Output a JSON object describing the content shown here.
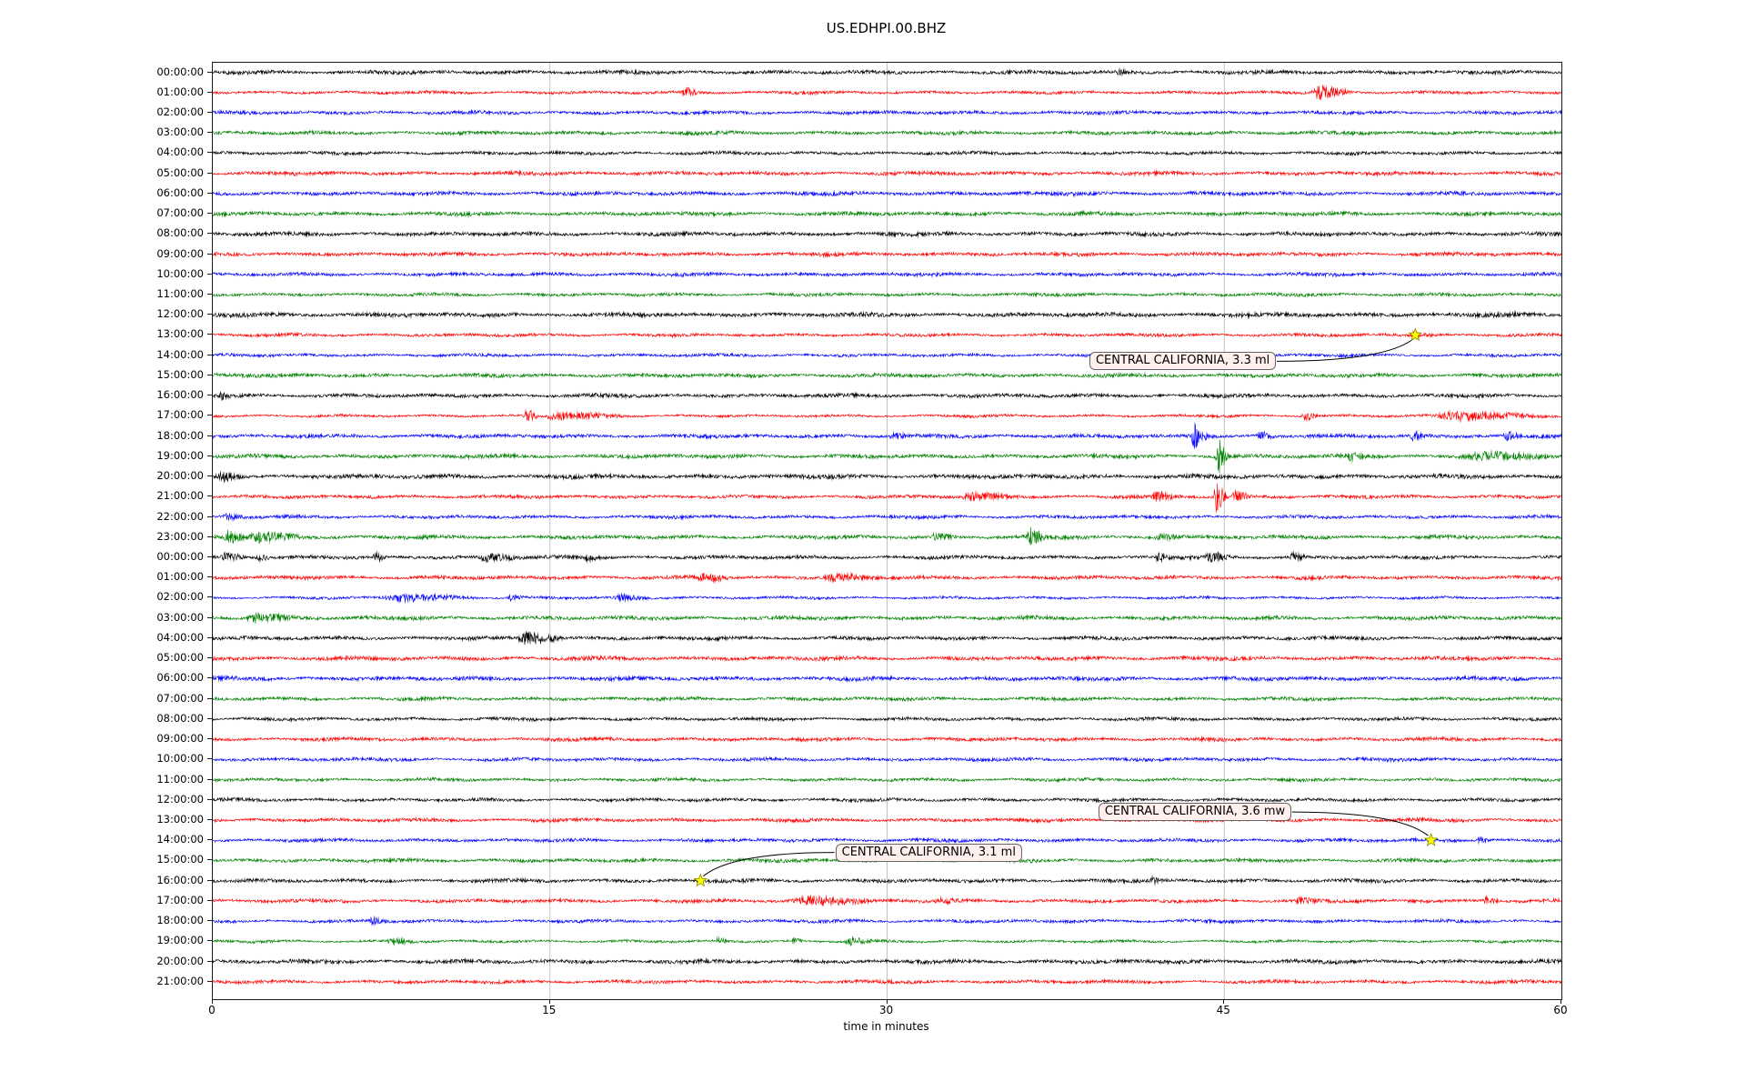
{
  "title": "US.EDHPI.00.BHZ",
  "chart_data": {
    "type": "line",
    "subtype": "seismogram-dayplot",
    "title": "US.EDHPI.00.BHZ",
    "xlabel": "time in minutes",
    "xlim": [
      0,
      60
    ],
    "x_ticks": [
      0,
      15,
      30,
      45,
      60
    ],
    "grid": true,
    "grid_color": "#bbbbbb",
    "trace_colors": [
      "#000000",
      "#ff0000",
      "#0000ff",
      "#008000"
    ],
    "marker_color": "#ffff00",
    "annotation_fill": "#fff0ee",
    "row_labels": [
      "00:00:00",
      "01:00:00",
      "02:00:00",
      "03:00:00",
      "04:00:00",
      "05:00:00",
      "06:00:00",
      "07:00:00",
      "08:00:00",
      "09:00:00",
      "10:00:00",
      "11:00:00",
      "12:00:00",
      "13:00:00",
      "14:00:00",
      "15:00:00",
      "16:00:00",
      "17:00:00",
      "18:00:00",
      "19:00:00",
      "20:00:00",
      "21:00:00",
      "22:00:00",
      "23:00:00",
      "00:00:00",
      "01:00:00",
      "02:00:00",
      "03:00:00",
      "04:00:00",
      "05:00:00",
      "06:00:00",
      "07:00:00",
      "08:00:00",
      "09:00:00",
      "10:00:00",
      "11:00:00",
      "12:00:00",
      "13:00:00",
      "14:00:00",
      "15:00:00",
      "16:00:00",
      "17:00:00",
      "18:00:00",
      "19:00:00",
      "20:00:00",
      "21:00:00"
    ],
    "events": [
      {
        "label": "CENTRAL CALIFORNIA, 3.3 ml",
        "row": 13,
        "minute": 53.5,
        "box_row": 14.3,
        "box_min": 39.0,
        "arrow_side": "right",
        "marker": "yellow-star"
      },
      {
        "label": "CENTRAL CALIFORNIA, 3.6 mw",
        "row": 38,
        "minute": 54.2,
        "box_row": 36.6,
        "box_min": 39.4,
        "arrow_side": "right",
        "marker": "yellow-star"
      },
      {
        "label": "CENTRAL CALIFORNIA, 3.1 ml",
        "row": 40,
        "minute": 21.7,
        "box_row": 38.6,
        "box_min": 27.7,
        "arrow_side": "left",
        "marker": "yellow-star"
      }
    ],
    "bursts": [
      {
        "row": 0,
        "s": 40.2,
        "e": 40.7,
        "a": 3
      },
      {
        "row": 1,
        "s": 20.8,
        "e": 21.7,
        "a": 5
      },
      {
        "row": 1,
        "s": 48.8,
        "e": 50.8,
        "a": 7
      },
      {
        "row": 13,
        "s": 53.2,
        "e": 54.4,
        "a": 3.5
      },
      {
        "row": 16,
        "s": 0.2,
        "e": 0.8,
        "a": 3
      },
      {
        "row": 17,
        "s": 13.8,
        "e": 14.5,
        "a": 8
      },
      {
        "row": 17,
        "s": 14.5,
        "e": 18.6,
        "a": 3.5
      },
      {
        "row": 17,
        "s": 48.4,
        "e": 49.3,
        "a": 4.5
      },
      {
        "row": 17,
        "s": 54.2,
        "e": 60.0,
        "a": 4.5
      },
      {
        "row": 18,
        "s": 30.1,
        "e": 30.9,
        "a": 3.5
      },
      {
        "row": 18,
        "s": 43.5,
        "e": 44.3,
        "a": 14
      },
      {
        "row": 18,
        "s": 46.4,
        "e": 47.4,
        "a": 4.5
      },
      {
        "row": 18,
        "s": 53.2,
        "e": 54.1,
        "a": 5
      },
      {
        "row": 18,
        "s": 57.4,
        "e": 58.3,
        "a": 4.5
      },
      {
        "row": 19,
        "s": 44.6,
        "e": 45.2,
        "a": 22
      },
      {
        "row": 19,
        "s": 50.4,
        "e": 51.3,
        "a": 4.5
      },
      {
        "row": 19,
        "s": 55.4,
        "e": 59.9,
        "a": 3.5
      },
      {
        "row": 20,
        "s": 0.2,
        "e": 1.3,
        "a": 4.5
      },
      {
        "row": 21,
        "s": 33.2,
        "e": 36.1,
        "a": 3.5
      },
      {
        "row": 21,
        "s": 41.7,
        "e": 43.1,
        "a": 4.5
      },
      {
        "row": 21,
        "s": 44.5,
        "e": 45.2,
        "a": 16
      },
      {
        "row": 21,
        "s": 45.3,
        "e": 46.3,
        "a": 5.5
      },
      {
        "row": 22,
        "s": 0.4,
        "e": 1.6,
        "a": 3
      },
      {
        "row": 23,
        "s": 0.5,
        "e": 1.5,
        "a": 8
      },
      {
        "row": 23,
        "s": 1.5,
        "e": 4.2,
        "a": 5.5
      },
      {
        "row": 23,
        "s": 31.9,
        "e": 33.1,
        "a": 3.5
      },
      {
        "row": 23,
        "s": 36.2,
        "e": 37.1,
        "a": 9
      },
      {
        "row": 23,
        "s": 41.9,
        "e": 43.1,
        "a": 3
      },
      {
        "row": 24,
        "s": 0.3,
        "e": 1.6,
        "a": 4.5
      },
      {
        "row": 24,
        "s": 1.9,
        "e": 2.6,
        "a": 3.5
      },
      {
        "row": 24,
        "s": 7.1,
        "e": 7.8,
        "a": 5.5
      },
      {
        "row": 24,
        "s": 11.7,
        "e": 13.9,
        "a": 4.5
      },
      {
        "row": 24,
        "s": 16.5,
        "e": 17.3,
        "a": 3.5
      },
      {
        "row": 24,
        "s": 41.9,
        "e": 42.7,
        "a": 3.5
      },
      {
        "row": 24,
        "s": 44.1,
        "e": 45.7,
        "a": 4.5
      },
      {
        "row": 24,
        "s": 47.9,
        "e": 48.7,
        "a": 4.5
      },
      {
        "row": 25,
        "s": 21.5,
        "e": 23.1,
        "a": 3.5
      },
      {
        "row": 25,
        "s": 27.1,
        "e": 29.9,
        "a": 3.5
      },
      {
        "row": 26,
        "s": 7.4,
        "e": 12.1,
        "a": 3.5
      },
      {
        "row": 26,
        "s": 13.1,
        "e": 13.9,
        "a": 3
      },
      {
        "row": 26,
        "s": 17.7,
        "e": 19.7,
        "a": 3.5
      },
      {
        "row": 27,
        "s": 1.4,
        "e": 3.9,
        "a": 4.5
      },
      {
        "row": 28,
        "s": 13.5,
        "e": 15.7,
        "a": 7
      },
      {
        "row": 38,
        "s": 56.2,
        "e": 56.9,
        "a": 3
      },
      {
        "row": 40,
        "s": 41.7,
        "e": 42.2,
        "a": 3
      },
      {
        "row": 41,
        "s": 25.7,
        "e": 29.9,
        "a": 4.5
      },
      {
        "row": 41,
        "s": 32.2,
        "e": 33.3,
        "a": 3
      },
      {
        "row": 41,
        "s": 48.1,
        "e": 49.3,
        "a": 3
      },
      {
        "row": 41,
        "s": 56.5,
        "e": 57.3,
        "a": 4
      },
      {
        "row": 42,
        "s": 6.9,
        "e": 7.9,
        "a": 3
      },
      {
        "row": 43,
        "s": 7.7,
        "e": 9.1,
        "a": 3
      },
      {
        "row": 43,
        "s": 22.3,
        "e": 23.0,
        "a": 3
      },
      {
        "row": 43,
        "s": 25.7,
        "e": 26.3,
        "a": 3
      },
      {
        "row": 43,
        "s": 28.1,
        "e": 29.5,
        "a": 3.5
      }
    ]
  }
}
